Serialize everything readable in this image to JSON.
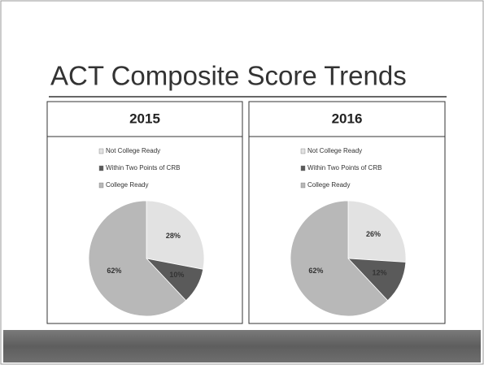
{
  "slide": {
    "title": "ACT Composite Score Trends"
  },
  "chart_data": [
    {
      "type": "pie",
      "title": "2015",
      "categories": [
        "Not College Ready",
        "Within Two Points of CRB",
        "College Ready"
      ],
      "values": [
        28,
        10,
        62
      ],
      "value_labels": [
        "28%",
        "10%",
        "62%"
      ],
      "colors": [
        "#e2e2e2",
        "#5a5a5a",
        "#b8b8b8"
      ]
    },
    {
      "type": "pie",
      "title": "2016",
      "categories": [
        "Not College Ready",
        "Within Two Points of CRB",
        "College Ready"
      ],
      "values": [
        26,
        12,
        62
      ],
      "value_labels": [
        "26%",
        "12%",
        "62%"
      ],
      "colors": [
        "#e2e2e2",
        "#5a5a5a",
        "#b8b8b8"
      ]
    }
  ]
}
